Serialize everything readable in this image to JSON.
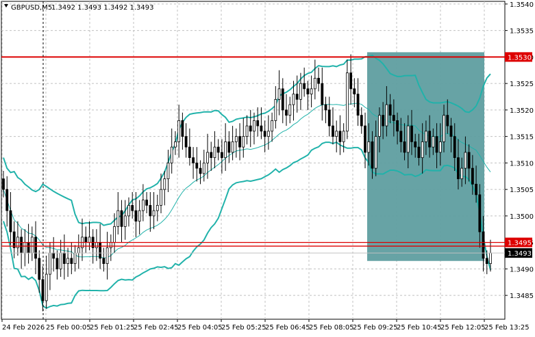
{
  "header": {
    "symbol": "GBPUSD,M5",
    "ohlc": "1.3492 1.3493 1.3492 1.3493"
  },
  "chart_data": {
    "type": "candlestick",
    "symbol": "GBPUSD",
    "timeframe": "M5",
    "ylim": [
      1.34805,
      1.35405
    ],
    "y_ticks": [
      "1.3540",
      "1.3535",
      "1.3530",
      "1.3525",
      "1.3520",
      "1.3515",
      "1.3510",
      "1.3505",
      "1.3500",
      "1.3495",
      "1.3490",
      "1.3485"
    ],
    "x_tick_labels": [
      "24 Feb 2026",
      "25 Feb 00:05",
      "25 Feb 01:25",
      "25 Feb 02:45",
      "25 Feb 04:05",
      "25 Feb 05:25",
      "25 Feb 06:45",
      "25 Feb 08:05",
      "25 Feb 09:25",
      "25 Feb 10:45",
      "25 Feb 12:05",
      "25 Feb 13:25"
    ],
    "grid": true,
    "current_price": "1.3493",
    "levels": [
      {
        "price": 1.353,
        "label": "1.3530",
        "color": "#dd0000"
      },
      {
        "price": 1.3495,
        "label": "1.3495",
        "color": "#dd0000"
      },
      {
        "price": 1.34943,
        "label": "",
        "color": "#dd0000"
      }
    ],
    "zone": {
      "from_time": "25 Feb 09:25",
      "to_time": "25 Feb 13:25",
      "top": 1.35309,
      "bottom": 1.34915,
      "color": "#5f9ea0"
    },
    "colors": {
      "candle": "#000000",
      "bollinger": "#20b2aa",
      "moving_average": "#20b2aa",
      "level": "#dd0000",
      "grid": "#c0c0c0"
    },
    "series_closes": [
      1.3505,
      1.3501,
      1.3497,
      1.3494,
      1.3496,
      1.3493,
      1.3495,
      1.3493,
      1.3496,
      1.3492,
      1.3488,
      1.3484,
      1.3489,
      1.3493,
      1.3492,
      1.349,
      1.3493,
      1.3491,
      1.3492,
      1.3491,
      1.3493,
      1.3494,
      1.3496,
      1.3495,
      1.3496,
      1.3494,
      1.3495,
      1.3492,
      1.3491,
      1.3494,
      1.3495,
      1.3498,
      1.3501,
      1.3498,
      1.35,
      1.3502,
      1.3501,
      1.3499,
      1.3501,
      1.3503,
      1.3502,
      1.35,
      1.3501,
      1.3502,
      1.3505,
      1.3507,
      1.351,
      1.3513,
      1.3514,
      1.3518,
      1.3515,
      1.3513,
      1.3511,
      1.351,
      1.3509,
      1.3508,
      1.351,
      1.3512,
      1.3511,
      1.3513,
      1.3512,
      1.3511,
      1.3514,
      1.3512,
      1.3514,
      1.3515,
      1.3513,
      1.3515,
      1.3517,
      1.3516,
      1.3518,
      1.3517,
      1.3516,
      1.3515,
      1.3516,
      1.3518,
      1.3522,
      1.3524,
      1.352,
      1.3519,
      1.3521,
      1.3523,
      1.3522,
      1.3525,
      1.3524,
      1.3523,
      1.3524,
      1.3526,
      1.3525,
      1.3521,
      1.352,
      1.3517,
      1.3515,
      1.3516,
      1.3514,
      1.3516,
      1.3527,
      1.3524,
      1.3523,
      1.3519,
      1.3517,
      1.3512,
      1.3514,
      1.3509,
      1.3515,
      1.3519,
      1.3517,
      1.3521,
      1.3519,
      1.3518,
      1.3516,
      1.3514,
      1.3512,
      1.3517,
      1.3514,
      1.3513,
      1.3511,
      1.3514,
      1.3516,
      1.3513,
      1.3515,
      1.3512,
      1.3514,
      1.3519,
      1.3517,
      1.3515,
      1.3511,
      1.3507,
      1.3509,
      1.3512,
      1.3509,
      1.3506,
      1.3504,
      1.3497,
      1.3492,
      1.3491,
      1.3493
    ]
  }
}
